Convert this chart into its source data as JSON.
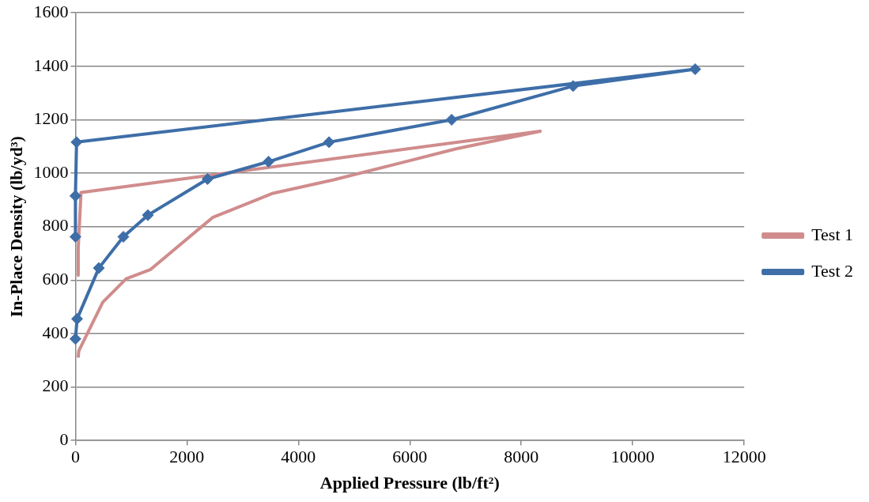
{
  "chart_data": {
    "type": "line",
    "xlabel": "Applied Pressure (lb/ft²)",
    "ylabel": "In-Place Density (lb/yd³)",
    "xlim": [
      0,
      12000
    ],
    "xticks": [
      0,
      2000,
      4000,
      6000,
      8000,
      10000,
      12000
    ],
    "ylim": [
      0,
      1600
    ],
    "yticks": [
      0,
      200,
      400,
      600,
      800,
      1000,
      1200,
      1400,
      1600
    ],
    "grid": "y",
    "legend": "right",
    "line_style": "solid",
    "series": [
      {
        "name": "Test 1",
        "color": "#d08c8c",
        "marker": "none",
        "x": [
          50,
          60,
          490,
          910,
          1350,
          2460,
          3545,
          4630,
          6830,
          8340,
          100,
          50,
          50
        ],
        "values": [
          310,
          335,
          517,
          605,
          640,
          834,
          925,
          975,
          1091,
          1157,
          928,
          718,
          618
        ]
      },
      {
        "name": "Test 2",
        "color": "#3e6ea8",
        "marker": "diamond",
        "x": [
          0,
          30,
          420,
          860,
          1300,
          2370,
          3465,
          4550,
          6750,
          8930,
          11120,
          20,
          0,
          0
        ],
        "values": [
          380,
          455,
          645,
          762,
          843,
          978,
          1043,
          1116,
          1200,
          1326,
          1389,
          1116,
          915,
          762
        ]
      }
    ]
  }
}
